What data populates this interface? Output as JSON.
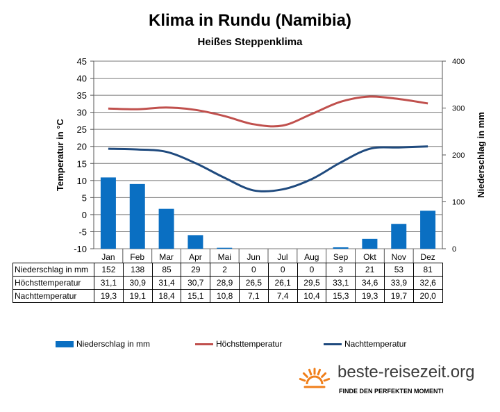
{
  "title": "Klima in Rundu (Namibia)",
  "subtitle": "Heißes Steppenklima",
  "brand": {
    "name": "beste-reisezeit.org",
    "tagline": "FINDE DEN PERFEKTEN MOMENT!",
    "icon": "sun-icon",
    "icon_color": "#f07f1a"
  },
  "colors": {
    "bar": "#0a6fc2",
    "high": "#c0504d",
    "low": "#1f4a7e"
  },
  "chart_data": {
    "type": "bar",
    "categories": [
      "Jan",
      "Feb",
      "Mar",
      "Apr",
      "Mai",
      "Jun",
      "Jul",
      "Aug",
      "Sep",
      "Okt",
      "Nov",
      "Dez"
    ],
    "series": [
      {
        "name": "Niederschlag in mm",
        "type": "bar",
        "axis": "right",
        "values": [
          152,
          138,
          85,
          29,
          2,
          0,
          0,
          0,
          3,
          21,
          53,
          81
        ]
      },
      {
        "name": "Höchsttemperatur",
        "type": "line",
        "axis": "left",
        "values": [
          31.1,
          30.9,
          31.4,
          30.7,
          28.9,
          26.5,
          26.1,
          29.5,
          33.1,
          34.6,
          33.9,
          32.6
        ]
      },
      {
        "name": "Nachttemperatur",
        "type": "line",
        "axis": "left",
        "values": [
          19.3,
          19.1,
          18.4,
          15.1,
          10.8,
          7.1,
          7.4,
          10.4,
          15.3,
          19.3,
          19.7,
          20.0
        ]
      }
    ],
    "ylabel": "Temperatur in °C",
    "ylim": [
      -10,
      45
    ],
    "yticks": [
      "45",
      "40",
      "35",
      "30",
      "25",
      "20",
      "15",
      "10",
      "5",
      "0",
      "-5",
      "-10"
    ],
    "y2label": "Niederschlag in mm",
    "y2lim": [
      0,
      400
    ],
    "y2ticks": [
      "400",
      "300",
      "200",
      "100",
      "0"
    ],
    "table_rows": [
      {
        "label": "Niederschlag in mm",
        "values": [
          "152",
          "138",
          "85",
          "29",
          "2",
          "0",
          "0",
          "0",
          "3",
          "21",
          "53",
          "81"
        ]
      },
      {
        "label": "Höchsttemperatur",
        "values": [
          "31,1",
          "30,9",
          "31,4",
          "30,7",
          "28,9",
          "26,5",
          "26,1",
          "29,5",
          "33,1",
          "34,6",
          "33,9",
          "32,6"
        ]
      },
      {
        "label": "Nachttemperatur",
        "values": [
          "19,3",
          "19,1",
          "18,4",
          "15,1",
          "10,8",
          "7,1",
          "7,4",
          "10,4",
          "15,3",
          "19,3",
          "19,7",
          "20,0"
        ]
      }
    ],
    "grid": true,
    "legend": "bottom"
  }
}
